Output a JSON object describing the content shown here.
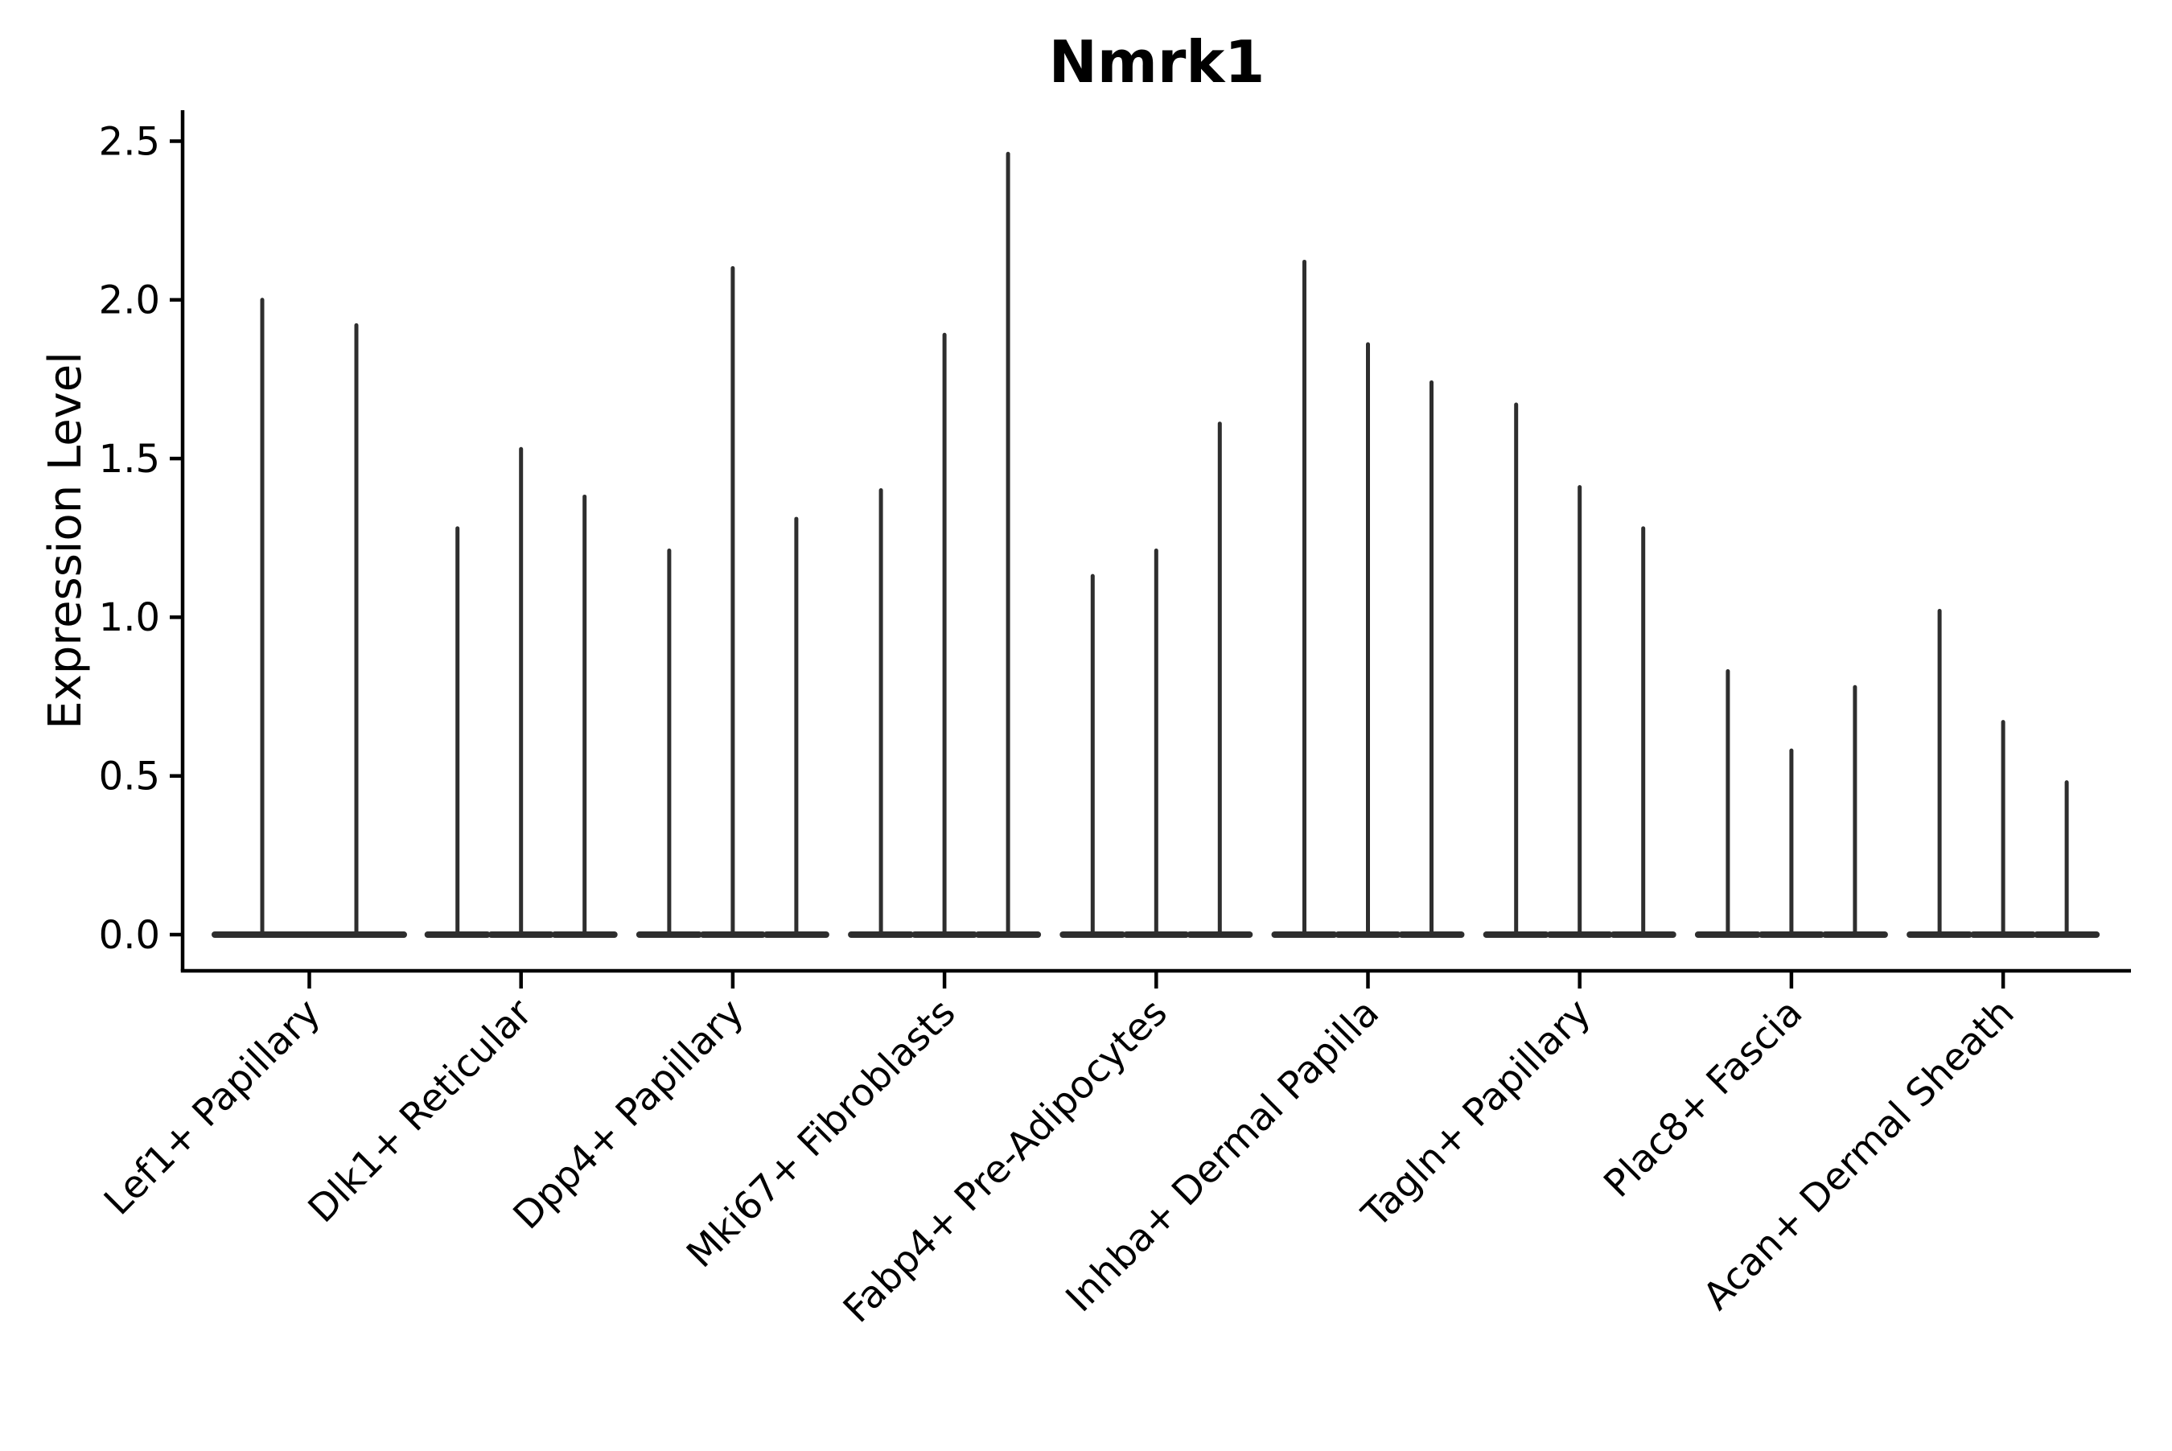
{
  "figure": {
    "background": "#ffffff"
  },
  "chart_data": {
    "type": "violin",
    "title": "Nmrk1",
    "xlabel": "",
    "ylabel": "Expression Level",
    "ylim": [
      0,
      2.6
    ],
    "ytick_labels": [
      "0.0",
      "0.5",
      "1.0",
      "1.5",
      "2.0",
      "2.5"
    ],
    "grid": false,
    "legend": "none",
    "style_note": "Single-cell expression violin plot; violins are collapsed to a flat dark base at 0 (most cells zero) with one thin vertical spike per violin rising to that violin's maximum expression value.",
    "colors": {
      "ink": "#000000",
      "violin": "#2e2e2e"
    },
    "groups": [
      {
        "category": "Lef1+ Papillary",
        "spike_maxima": [
          2.0,
          1.92
        ]
      },
      {
        "category": "Dlk1+ Reticular",
        "spike_maxima": [
          1.28,
          1.53,
          1.38
        ]
      },
      {
        "category": "Dpp4+ Papillary",
        "spike_maxima": [
          1.21,
          2.1,
          1.31
        ]
      },
      {
        "category": "Mki67+ Fibroblasts",
        "spike_maxima": [
          1.4,
          1.89,
          2.46
        ]
      },
      {
        "category": "Fabp4+ Pre-Adipocytes",
        "spike_maxima": [
          1.13,
          1.21,
          1.61
        ]
      },
      {
        "category": "Inhba+ Dermal Papilla",
        "spike_maxima": [
          2.12,
          1.86,
          1.74
        ]
      },
      {
        "category": "Tagln+ Papillary",
        "spike_maxima": [
          1.67,
          1.41,
          1.28
        ]
      },
      {
        "category": "Plac8+ Fascia",
        "spike_maxima": [
          0.83,
          0.58,
          0.78
        ]
      },
      {
        "category": "Acan+ Dermal Sheath",
        "spike_maxima": [
          1.02,
          0.67,
          0.48
        ]
      }
    ]
  }
}
